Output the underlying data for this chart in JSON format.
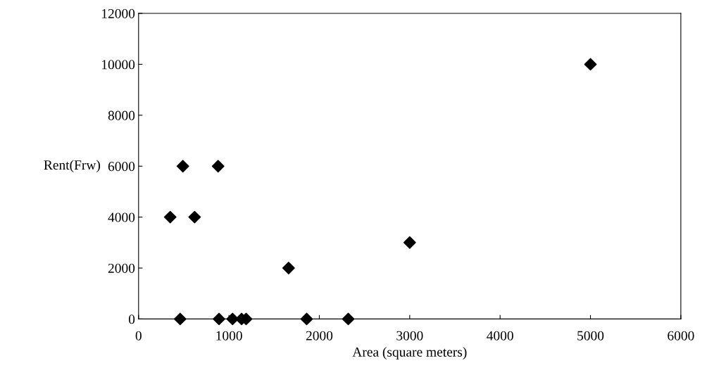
{
  "chart_data": {
    "type": "scatter",
    "xlabel": "Area (square meters)",
    "ylabel": "Rent(Frw)",
    "x": [
      350,
      620,
      490,
      880,
      1660,
      3000,
      5000,
      460,
      890,
      1040,
      1140,
      1190,
      1860,
      2320
    ],
    "values": [
      4000,
      4000,
      6000,
      6000,
      2000,
      3000,
      10000,
      0,
      0,
      0,
      0,
      0,
      0,
      0
    ],
    "color": "#000000",
    "marker": "diamond",
    "xlim": [
      0,
      6000
    ],
    "xticks": [
      0,
      1000,
      2000,
      3000,
      4000,
      5000,
      6000
    ],
    "ylim": [
      0,
      12000
    ],
    "yticks": [
      0,
      2000,
      4000,
      6000,
      8000,
      10000,
      12000
    ],
    "grid": false
  }
}
